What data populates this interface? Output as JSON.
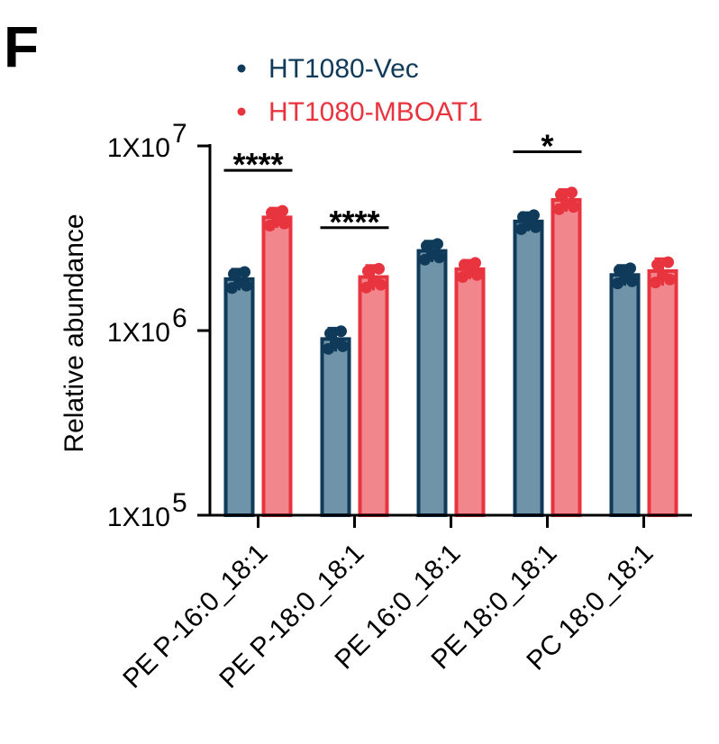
{
  "panel_label": "F",
  "colors": {
    "vec": "#0f3a5a",
    "vec_fill": "#6f93a8",
    "mboat": "#e8343e",
    "mboat_fill": "#f1868c"
  },
  "chart_data": {
    "type": "bar",
    "ylabel": "Relative abundance",
    "y_scale": "log",
    "ylim": [
      100000,
      10000000
    ],
    "yticks": [
      {
        "value": 100000,
        "base": "1X10",
        "exp": "5"
      },
      {
        "value": 1000000,
        "base": "1X10",
        "exp": "6"
      },
      {
        "value": 10000000,
        "base": "1X10",
        "exp": "7"
      }
    ],
    "categories": [
      "PE P-16:0_18:1",
      "PE P-18:0_18:1",
      "PE 16:0_18:1",
      "PE 18:0_18:1",
      "PC 18:0_18:1"
    ],
    "series": [
      {
        "name": "HT1080-Vec",
        "values": [
          1900000,
          900000,
          2700000,
          3900000,
          2000000
        ],
        "errors": [
          250000,
          130000,
          350000,
          450000,
          250000
        ]
      },
      {
        "name": "HT1080-MBOAT1",
        "values": [
          4100000,
          1950000,
          2150000,
          5100000,
          2100000
        ],
        "errors": [
          500000,
          300000,
          250000,
          700000,
          350000
        ]
      }
    ],
    "legend": "top",
    "significance": [
      {
        "category_index": 0,
        "label": "****"
      },
      {
        "category_index": 1,
        "label": "****"
      },
      {
        "category_index": 3,
        "label": "*"
      }
    ]
  }
}
